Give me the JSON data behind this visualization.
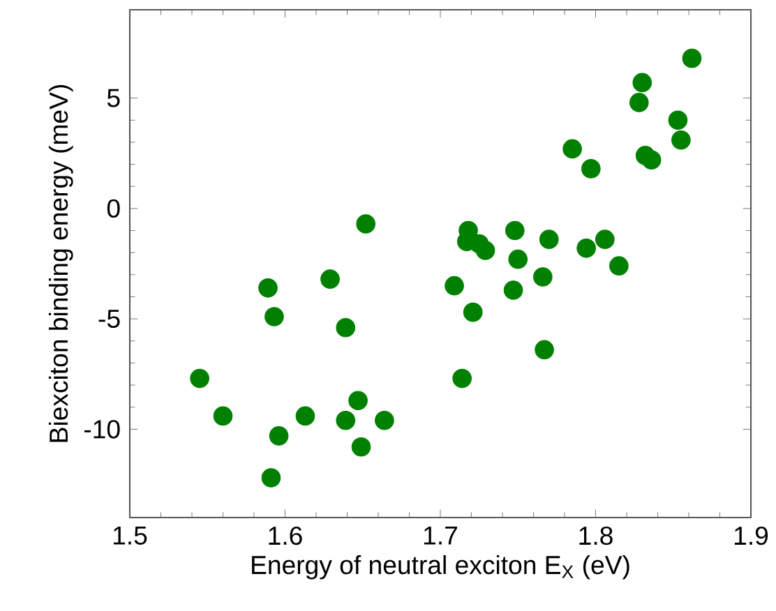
{
  "chart_data": {
    "type": "scatter",
    "xlabel": "Energy of neutral exciton E$_{X}$ (eV)",
    "ylabel": "Biexciton binding energy (meV)",
    "color": "#008000",
    "marker": "circle",
    "grid": false,
    "xlim": [
      1.5,
      1.9
    ],
    "ylim": [
      -14,
      9
    ],
    "xticks": [
      1.5,
      1.6,
      1.7,
      1.8,
      1.9
    ],
    "yticks": [
      -10,
      -5,
      0,
      5
    ],
    "x": [
      1.545,
      1.56,
      1.589,
      1.593,
      1.591,
      1.596,
      1.613,
      1.629,
      1.639,
      1.639,
      1.647,
      1.649,
      1.652,
      1.664,
      1.709,
      1.714,
      1.718,
      1.717,
      1.721,
      1.729,
      1.725,
      1.748,
      1.75,
      1.747,
      1.77,
      1.766,
      1.767,
      1.785,
      1.797,
      1.794,
      1.806,
      1.815,
      1.828,
      1.83,
      1.832,
      1.836,
      1.853,
      1.855,
      1.862
    ],
    "values": [
      -7.7,
      -9.4,
      -3.6,
      -4.9,
      -12.2,
      -10.3,
      -9.4,
      -3.2,
      -5.4,
      -9.6,
      -8.7,
      -10.8,
      -0.7,
      -9.6,
      -3.5,
      -7.7,
      -1.0,
      -1.5,
      -4.7,
      -1.9,
      -1.6,
      -1.0,
      -2.3,
      -3.7,
      -1.4,
      -3.1,
      -6.4,
      2.7,
      1.8,
      -1.8,
      -1.4,
      -2.6,
      4.8,
      5.7,
      2.4,
      2.2,
      4.0,
      3.1,
      6.8
    ]
  }
}
